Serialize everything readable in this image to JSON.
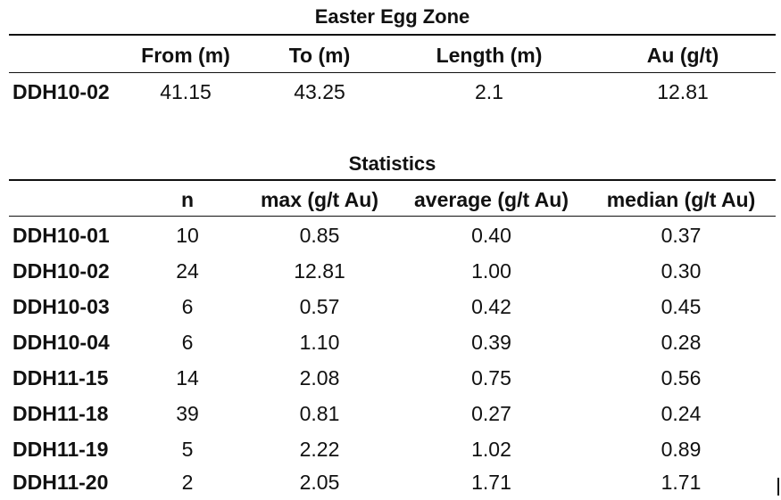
{
  "easter_egg": {
    "title": "Easter Egg Zone",
    "headers": [
      "From (m)",
      "To (m)",
      "Length (m)",
      "Au (g/t)"
    ],
    "rows": [
      {
        "label": "DDH10-02",
        "values": [
          "41.15",
          "43.25",
          "2.1",
          "12.81"
        ]
      }
    ]
  },
  "statistics": {
    "title": "Statistics",
    "headers": [
      "n",
      "max (g/t Au)",
      "average (g/t Au)",
      "median (g/t Au)"
    ],
    "rows": [
      {
        "label": "DDH10-01",
        "values": [
          "10",
          "0.85",
          "0.40",
          "0.37"
        ]
      },
      {
        "label": "DDH10-02",
        "values": [
          "24",
          "12.81",
          "1.00",
          "0.30"
        ]
      },
      {
        "label": "DDH10-03",
        "values": [
          "6",
          "0.57",
          "0.42",
          "0.45"
        ]
      },
      {
        "label": "DDH10-04",
        "values": [
          "6",
          "1.10",
          "0.39",
          "0.28"
        ]
      },
      {
        "label": "DDH11-15",
        "values": [
          "14",
          "2.08",
          "0.75",
          "0.56"
        ]
      },
      {
        "label": "DDH11-18",
        "values": [
          "39",
          "0.81",
          "0.27",
          "0.24"
        ]
      },
      {
        "label": "DDH11-19",
        "values": [
          "5",
          "2.22",
          "1.02",
          "0.89"
        ]
      },
      {
        "label": "DDH11-20",
        "values": [
          "2",
          "2.05",
          "1.71",
          "1.71"
        ]
      }
    ]
  }
}
